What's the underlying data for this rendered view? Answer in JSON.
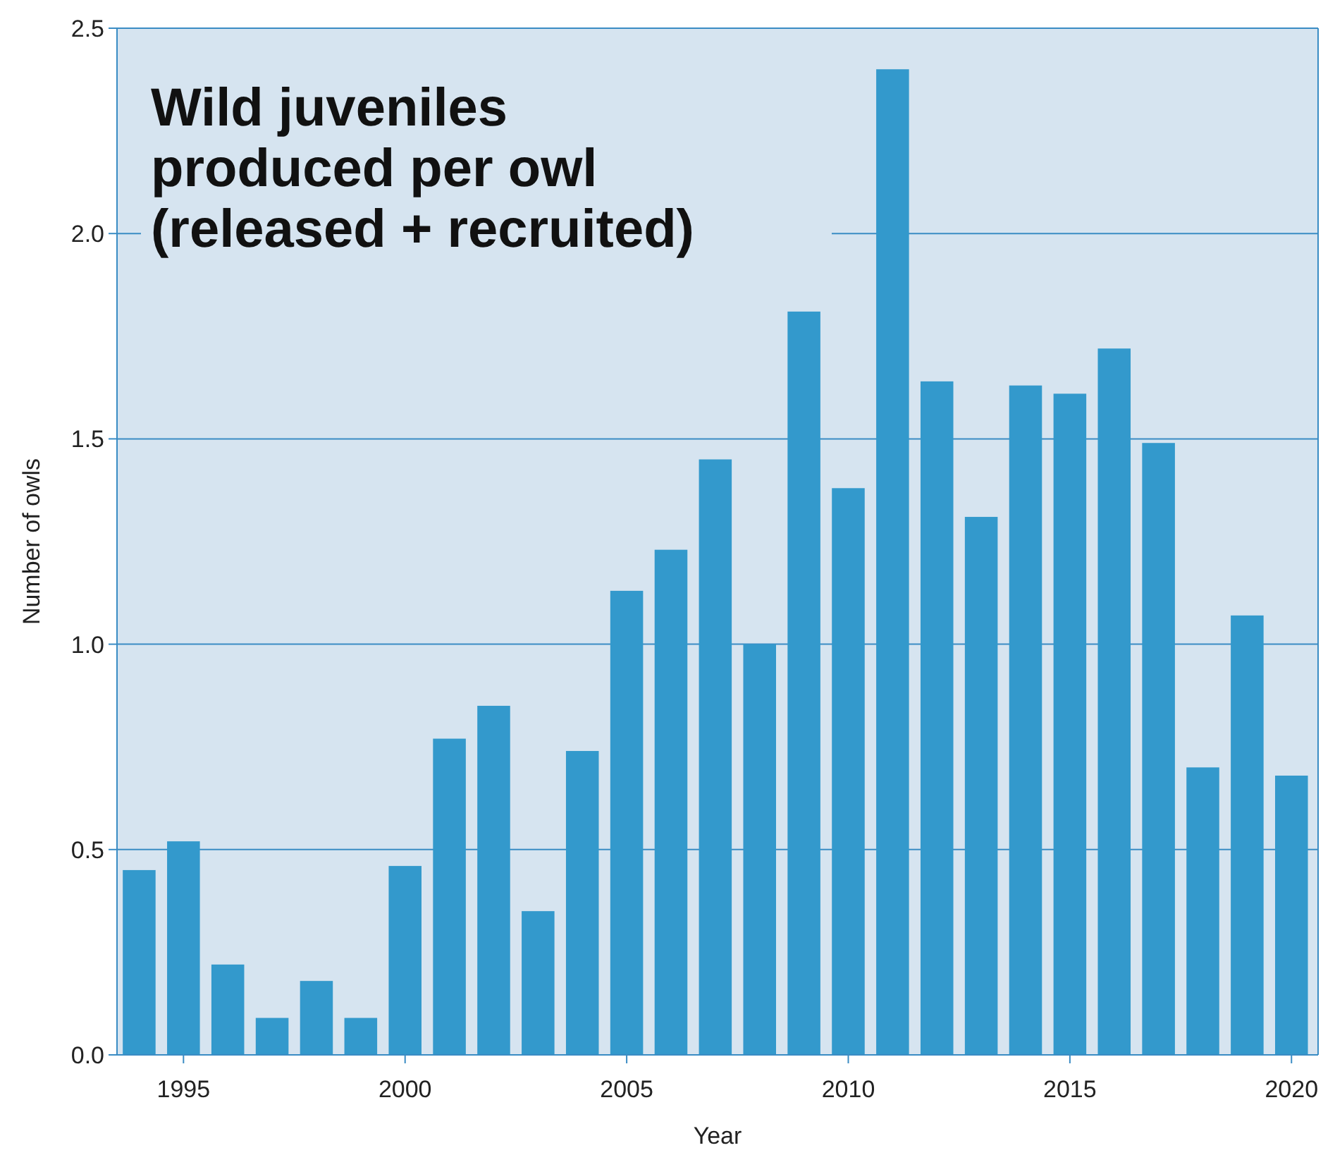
{
  "chart_data": {
    "type": "bar",
    "title": "Wild juveniles\nproduced per owl\n(released + recruited)",
    "xlabel": "Year",
    "ylabel": "Number of owls",
    "x": [
      1994,
      1995,
      1996,
      1997,
      1998,
      1999,
      2000,
      2001,
      2002,
      2003,
      2004,
      2005,
      2006,
      2007,
      2008,
      2009,
      2010,
      2011,
      2012,
      2013,
      2014,
      2015,
      2016,
      2017,
      2018,
      2019,
      2020
    ],
    "values": [
      0.45,
      0.52,
      0.22,
      0.09,
      0.18,
      0.09,
      0.46,
      0.77,
      0.85,
      0.35,
      0.74,
      1.13,
      1.23,
      1.45,
      1.0,
      1.81,
      1.38,
      2.4,
      1.64,
      1.31,
      1.63,
      1.61,
      1.72,
      1.49,
      0.7,
      1.07,
      0.68
    ],
    "color": "#3399cc",
    "xlim": [
      1993.5,
      2020.6
    ],
    "xticks": [
      1995,
      2000,
      2005,
      2010,
      2015,
      2020
    ],
    "ylim": [
      0,
      2.5
    ],
    "yticks": [
      {
        "value": 0,
        "label": "0.0"
      },
      {
        "value": 0.5,
        "label": "0.5"
      },
      {
        "value": 1,
        "label": "1.0"
      },
      {
        "value": 1.5,
        "label": "1.5"
      },
      {
        "value": 2,
        "label": "2.0"
      },
      {
        "value": 2.5,
        "label": "2.5"
      }
    ],
    "grid": "y"
  }
}
